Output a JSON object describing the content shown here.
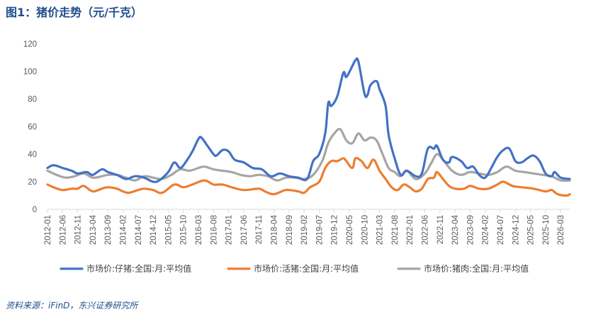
{
  "title": "图1：猪价走势（元/千克）",
  "source": "资料来源：iFinD，东兴证券研究所",
  "chart_data": {
    "type": "line",
    "title": "图1：猪价走势（元/千克）",
    "xlabel": "",
    "ylabel": "",
    "ylim": [
      0,
      120
    ],
    "yticks": [
      0,
      20,
      40,
      60,
      80,
      100,
      120
    ],
    "grid": false,
    "legend_position": "bottom",
    "x_range": [
      "2012-01",
      "2026-06"
    ],
    "x_ticks": [
      "2012-01",
      "2012-06",
      "2012-11",
      "2013-04",
      "2013-09",
      "2014-02",
      "2014-07",
      "2014-12",
      "2015-05",
      "2015-10",
      "2016-03",
      "2016-08",
      "2017-01",
      "2017-06",
      "2017-11",
      "2018-04",
      "2018-09",
      "2019-02",
      "2019-07",
      "2019-12",
      "2020-05",
      "2020-10",
      "2021-03",
      "2021-08",
      "2022-01",
      "2022-06",
      "2022-11",
      "2023-04",
      "2023-09",
      "2024-02",
      "2024-07",
      "2024-12",
      "2025-05",
      "2025-10",
      "2026-03"
    ],
    "series": [
      {
        "name": "市场价:仔猪:全国:月:平均值",
        "color": "#4472c4",
        "points": [
          [
            "2012-01",
            30
          ],
          [
            "2012-03",
            32
          ],
          [
            "2012-06",
            30
          ],
          [
            "2012-09",
            28
          ],
          [
            "2012-11",
            26
          ],
          [
            "2013-02",
            27
          ],
          [
            "2013-04",
            25
          ],
          [
            "2013-07",
            29
          ],
          [
            "2013-09",
            27
          ],
          [
            "2013-12",
            25
          ],
          [
            "2014-03",
            22
          ],
          [
            "2014-06",
            24
          ],
          [
            "2014-09",
            23
          ],
          [
            "2014-12",
            20
          ],
          [
            "2015-02",
            21
          ],
          [
            "2015-05",
            27
          ],
          [
            "2015-07",
            34
          ],
          [
            "2015-09",
            30
          ],
          [
            "2015-11",
            35
          ],
          [
            "2016-01",
            42
          ],
          [
            "2016-03",
            51
          ],
          [
            "2016-04",
            52
          ],
          [
            "2016-06",
            46
          ],
          [
            "2016-08",
            40
          ],
          [
            "2016-09",
            39
          ],
          [
            "2016-11",
            43
          ],
          [
            "2017-01",
            42
          ],
          [
            "2017-03",
            36
          ],
          [
            "2017-06",
            34
          ],
          [
            "2017-09",
            30
          ],
          [
            "2017-12",
            29
          ],
          [
            "2018-03",
            24
          ],
          [
            "2018-06",
            26
          ],
          [
            "2018-09",
            24
          ],
          [
            "2018-12",
            23
          ],
          [
            "2019-03",
            22
          ],
          [
            "2019-05",
            35
          ],
          [
            "2019-07",
            40
          ],
          [
            "2019-09",
            55
          ],
          [
            "2019-10",
            77
          ],
          [
            "2019-11",
            75
          ],
          [
            "2020-01",
            82
          ],
          [
            "2020-03",
            99
          ],
          [
            "2020-04",
            96
          ],
          [
            "2020-06",
            104
          ],
          [
            "2020-07",
            108
          ],
          [
            "2020-08",
            107
          ],
          [
            "2020-10",
            84
          ],
          [
            "2020-11",
            83
          ],
          [
            "2020-12",
            90
          ],
          [
            "2021-02",
            93
          ],
          [
            "2021-03",
            87
          ],
          [
            "2021-05",
            75
          ],
          [
            "2021-06",
            54
          ],
          [
            "2021-08",
            37
          ],
          [
            "2021-10",
            25
          ],
          [
            "2021-12",
            28
          ],
          [
            "2022-03",
            24
          ],
          [
            "2022-05",
            26
          ],
          [
            "2022-07",
            44
          ],
          [
            "2022-09",
            44
          ],
          [
            "2022-10",
            46
          ],
          [
            "2022-12",
            36
          ],
          [
            "2023-02",
            34
          ],
          [
            "2023-03",
            38
          ],
          [
            "2023-06",
            35
          ],
          [
            "2023-08",
            30
          ],
          [
            "2023-10",
            31
          ],
          [
            "2023-12",
            25
          ],
          [
            "2024-02",
            23
          ],
          [
            "2024-04",
            30
          ],
          [
            "2024-06",
            38
          ],
          [
            "2024-08",
            43
          ],
          [
            "2024-10",
            44
          ],
          [
            "2024-12",
            35
          ],
          [
            "2025-02",
            34
          ],
          [
            "2025-04",
            37
          ],
          [
            "2025-06",
            39
          ],
          [
            "2025-08",
            35
          ],
          [
            "2025-10",
            26
          ],
          [
            "2025-12",
            24
          ],
          [
            "2026-01",
            27
          ],
          [
            "2026-03",
            23
          ],
          [
            "2026-06",
            22
          ]
        ]
      },
      {
        "name": "市场价:活猪:全国:月:平均值",
        "color": "#ed7d31",
        "points": [
          [
            "2012-01",
            18
          ],
          [
            "2012-03",
            16
          ],
          [
            "2012-06",
            14
          ],
          [
            "2012-09",
            15
          ],
          [
            "2012-11",
            15
          ],
          [
            "2013-01",
            17
          ],
          [
            "2013-04",
            13
          ],
          [
            "2013-07",
            15
          ],
          [
            "2013-09",
            16
          ],
          [
            "2013-12",
            15
          ],
          [
            "2014-02",
            13
          ],
          [
            "2014-04",
            12
          ],
          [
            "2014-07",
            14
          ],
          [
            "2014-09",
            15
          ],
          [
            "2014-12",
            14
          ],
          [
            "2015-03",
            12
          ],
          [
            "2015-07",
            18
          ],
          [
            "2015-10",
            16
          ],
          [
            "2016-01",
            18
          ],
          [
            "2016-05",
            21
          ],
          [
            "2016-08",
            18
          ],
          [
            "2016-11",
            18
          ],
          [
            "2017-02",
            16
          ],
          [
            "2017-06",
            14
          ],
          [
            "2017-11",
            15
          ],
          [
            "2018-01",
            13
          ],
          [
            "2018-04",
            11
          ],
          [
            "2018-08",
            14
          ],
          [
            "2018-12",
            13
          ],
          [
            "2019-02",
            12
          ],
          [
            "2019-04",
            16
          ],
          [
            "2019-07",
            20
          ],
          [
            "2019-09",
            30
          ],
          [
            "2019-11",
            35
          ],
          [
            "2020-01",
            35
          ],
          [
            "2020-03",
            37
          ],
          [
            "2020-04",
            35
          ],
          [
            "2020-06",
            30
          ],
          [
            "2020-07",
            37
          ],
          [
            "2020-09",
            35
          ],
          [
            "2020-11",
            30
          ],
          [
            "2021-01",
            36
          ],
          [
            "2021-03",
            28
          ],
          [
            "2021-05",
            22
          ],
          [
            "2021-07",
            16
          ],
          [
            "2021-09",
            14
          ],
          [
            "2021-11",
            18
          ],
          [
            "2022-01",
            16
          ],
          [
            "2022-03",
            13
          ],
          [
            "2022-05",
            15
          ],
          [
            "2022-07",
            22
          ],
          [
            "2022-09",
            23
          ],
          [
            "2022-10",
            27
          ],
          [
            "2022-12",
            22
          ],
          [
            "2023-02",
            17
          ],
          [
            "2023-04",
            15
          ],
          [
            "2023-07",
            15
          ],
          [
            "2023-09",
            17
          ],
          [
            "2023-12",
            15
          ],
          [
            "2024-03",
            15
          ],
          [
            "2024-06",
            18
          ],
          [
            "2024-08",
            20
          ],
          [
            "2024-11",
            17
          ],
          [
            "2025-02",
            16
          ],
          [
            "2025-06",
            15
          ],
          [
            "2025-10",
            13
          ],
          [
            "2025-12",
            14
          ],
          [
            "2026-02",
            11
          ],
          [
            "2026-05",
            10
          ],
          [
            "2026-06",
            11
          ]
        ]
      },
      {
        "name": "市场价:猪肉:全国:月:平均值",
        "color": "#a5a5a5",
        "points": [
          [
            "2012-01",
            28
          ],
          [
            "2012-04",
            25
          ],
          [
            "2012-07",
            23
          ],
          [
            "2012-10",
            24
          ],
          [
            "2013-01",
            26
          ],
          [
            "2013-04",
            23
          ],
          [
            "2013-07",
            24
          ],
          [
            "2013-09",
            25
          ],
          [
            "2013-12",
            25
          ],
          [
            "2014-03",
            23
          ],
          [
            "2014-06",
            21
          ],
          [
            "2014-09",
            24
          ],
          [
            "2014-12",
            23
          ],
          [
            "2015-03",
            22
          ],
          [
            "2015-06",
            25
          ],
          [
            "2015-09",
            29
          ],
          [
            "2015-12",
            28
          ],
          [
            "2016-03",
            30
          ],
          [
            "2016-05",
            31
          ],
          [
            "2016-08",
            29
          ],
          [
            "2016-11",
            28
          ],
          [
            "2017-02",
            27
          ],
          [
            "2017-05",
            25
          ],
          [
            "2017-08",
            24
          ],
          [
            "2017-11",
            25
          ],
          [
            "2018-02",
            24
          ],
          [
            "2018-05",
            21
          ],
          [
            "2018-08",
            23
          ],
          [
            "2018-11",
            23
          ],
          [
            "2019-02",
            22
          ],
          [
            "2019-05",
            25
          ],
          [
            "2019-08",
            35
          ],
          [
            "2019-10",
            48
          ],
          [
            "2019-12",
            55
          ],
          [
            "2020-02",
            58
          ],
          [
            "2020-04",
            50
          ],
          [
            "2020-06",
            48
          ],
          [
            "2020-08",
            55
          ],
          [
            "2020-10",
            50
          ],
          [
            "2020-12",
            52
          ],
          [
            "2021-02",
            50
          ],
          [
            "2021-04",
            40
          ],
          [
            "2021-06",
            30
          ],
          [
            "2021-08",
            27
          ],
          [
            "2021-10",
            24
          ],
          [
            "2021-12",
            28
          ],
          [
            "2022-03",
            22
          ],
          [
            "2022-06",
            26
          ],
          [
            "2022-08",
            33
          ],
          [
            "2022-10",
            40
          ],
          [
            "2022-12",
            36
          ],
          [
            "2023-03",
            28
          ],
          [
            "2023-06",
            25
          ],
          [
            "2023-09",
            27
          ],
          [
            "2023-12",
            26
          ],
          [
            "2024-03",
            25
          ],
          [
            "2024-06",
            27
          ],
          [
            "2024-09",
            31
          ],
          [
            "2024-12",
            28
          ],
          [
            "2025-03",
            27
          ],
          [
            "2025-06",
            26
          ],
          [
            "2025-09",
            25
          ],
          [
            "2025-12",
            24
          ],
          [
            "2026-03",
            21
          ],
          [
            "2026-06",
            21
          ]
        ]
      }
    ]
  }
}
